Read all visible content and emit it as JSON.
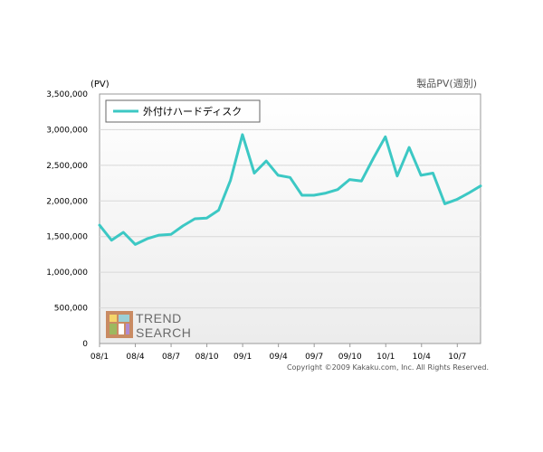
{
  "chart_data": {
    "type": "line",
    "unit_label": "(PV)",
    "metric_label": "製品PV(週別)",
    "x_tick_labels": [
      "08/1",
      "08/4",
      "08/7",
      "08/10",
      "09/1",
      "09/4",
      "09/7",
      "09/10",
      "10/1",
      "10/4",
      "10/7"
    ],
    "y_tick_labels": [
      "3,500,000",
      "3,000,000",
      "2,500,000",
      "2,000,000",
      "1,500,000",
      "1,000,000",
      "500,000",
      "0"
    ],
    "ylim": [
      0,
      3500000
    ],
    "grid": true,
    "legend_position": "top-left",
    "series": [
      {
        "name": "外付けハードディスク",
        "color": "#3cc8c4",
        "values": [
          1660000,
          1450000,
          1560000,
          1390000,
          1470000,
          1520000,
          1530000,
          1650000,
          1750000,
          1760000,
          1870000,
          2290000,
          2930000,
          2390000,
          2560000,
          2360000,
          2330000,
          2080000,
          2080000,
          2110000,
          2160000,
          2300000,
          2280000,
          2600000,
          2900000,
          2350000,
          2750000,
          2360000,
          2390000,
          1960000,
          2020000,
          2110000,
          2210000
        ]
      }
    ]
  },
  "branding": {
    "logo_line1": "TREND",
    "logo_line2": "SEARCH",
    "copyright": "Copyright ©2009 Kakaku.com, Inc. All Rights Reserved."
  }
}
